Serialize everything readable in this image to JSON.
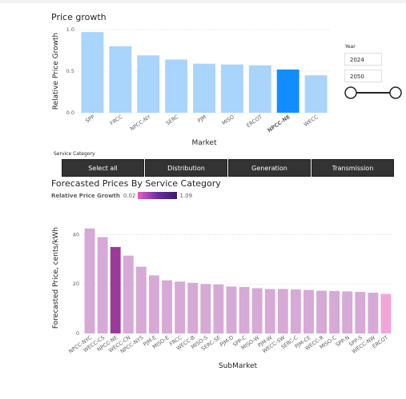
{
  "price_growth": {
    "title": "Price growth",
    "chart_data": {
      "type": "bar",
      "categories": [
        "SPP",
        "FRCC",
        "NPCC-NY",
        "SERC",
        "PJM",
        "MISO",
        "ERCOT",
        "NPCC-NE",
        "WECC"
      ],
      "values": [
        0.97,
        0.8,
        0.69,
        0.64,
        0.59,
        0.58,
        0.57,
        0.52,
        0.45
      ],
      "highlighted": "NPCC-NE",
      "xlabel": "Market",
      "ylabel": "Relative Price Growth",
      "ylim": [
        0,
        1.0
      ],
      "yticks": [
        "0.0",
        "0.5",
        "1.0"
      ],
      "grid": true,
      "colors": {
        "bar": "#a9d4fb",
        "highlight": "#118dff"
      }
    }
  },
  "year_slicer": {
    "label": "Year",
    "start": "2024",
    "end": "2050"
  },
  "service_category": {
    "label": "Service Category",
    "buttons": [
      "Select all",
      "Distribution",
      "Generation",
      "Transmission"
    ]
  },
  "forecast": {
    "title": "Forecasted Prices By Service Category",
    "legend": {
      "title": "Relative Price Growth",
      "min": "0.02",
      "max": "1.09"
    },
    "chart_data": {
      "type": "bar",
      "categories": [
        "NPCC-NYC",
        "WECC-CS",
        "NPCC-NE",
        "WECC-CN",
        "NPCC-NYS",
        "PJM-E",
        "MISO-E",
        "FRCC",
        "WECC-B",
        "MISO-S",
        "SERC-SE",
        "PJM-D",
        "SPP-C",
        "MISO-W",
        "PJM-W",
        "WECC-SW",
        "SERC-C",
        "PJM-CE",
        "WECC-R",
        "MISO-C",
        "SPP-N",
        "SPP-S",
        "WECC-NW",
        "ERCOT"
      ],
      "values": [
        42.5,
        39.0,
        35.0,
        31.5,
        27.0,
        23.5,
        21.5,
        21.0,
        20.5,
        20.0,
        19.8,
        19.0,
        18.8,
        18.3,
        18.0,
        18.0,
        17.8,
        17.6,
        17.3,
        17.2,
        17.0,
        16.8,
        16.5,
        16.0
      ],
      "highlighted": "NPCC-NE",
      "xlabel": "SubMarket",
      "ylabel": "Forecasted Price, cents/kWh",
      "ylim": [
        0,
        45
      ],
      "yticks": [
        "0",
        "20",
        "40"
      ],
      "grid": true,
      "colors": {
        "bar": "#d6a9d6",
        "highlight": "#9b3a99",
        "last": "#f0a7d8"
      }
    }
  }
}
